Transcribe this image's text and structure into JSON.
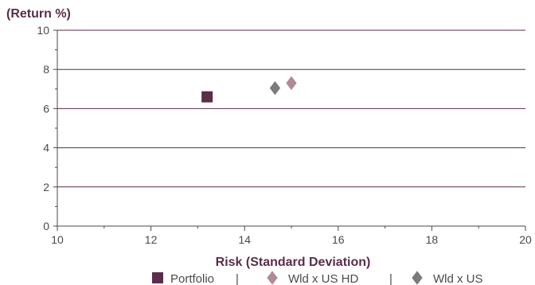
{
  "chart_data": {
    "type": "scatter",
    "title": "",
    "xlabel": "Risk (Standard Deviation)",
    "ylabel": "(Return %)",
    "xlim": [
      10,
      20
    ],
    "ylim": [
      0,
      10
    ],
    "x_ticks": [
      10,
      12,
      14,
      16,
      18,
      20
    ],
    "y_ticks": [
      0,
      2,
      4,
      6,
      8,
      10
    ],
    "grid": "horizontal",
    "legend_position": "bottom",
    "legend_separator": "|",
    "series": [
      {
        "name": "Portfolio",
        "marker": "square",
        "color": "#5a2d4a",
        "x": 13.2,
        "y": 6.6
      },
      {
        "name": "Wld x US HD",
        "marker": "diamond",
        "color": "#b08a98",
        "x": 15.0,
        "y": 7.3
      },
      {
        "name": "Wld x US",
        "marker": "diamond",
        "color": "#7b7b7b",
        "x": 14.65,
        "y": 7.05
      }
    ],
    "colors": {
      "axis_title": "#5a2d4a",
      "grid": "#5a2d4a",
      "axis": "#4a4a4a"
    }
  }
}
